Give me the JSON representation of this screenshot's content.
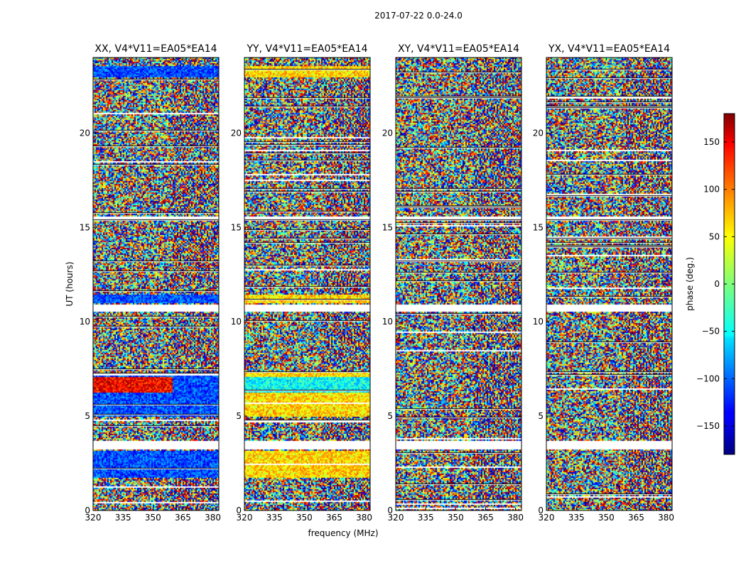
{
  "chart_data": {
    "type": "heatmap",
    "suptitle": "2017-07-22 0.0-24.0",
    "xlabel": "frequency (MHz)",
    "ylabel": "UT (hours)",
    "xlim": [
      320,
      383
    ],
    "ylim": [
      0,
      24
    ],
    "xticks": [
      320,
      335,
      350,
      365,
      380
    ],
    "yticks": [
      0,
      5,
      10,
      15,
      20
    ],
    "panels": [
      {
        "title": "XX, V4*V11=EA05*EA14",
        "correlation": "XX"
      },
      {
        "title": "YY, V4*V11=EA05*EA14",
        "correlation": "YY"
      },
      {
        "title": "XY, V4*V11=EA05*EA14",
        "correlation": "XY"
      },
      {
        "title": "YX, V4*V11=EA05*EA14",
        "correlation": "YX"
      }
    ],
    "colorbar": {
      "label": "phase (deg.)",
      "range": [
        -180,
        180
      ],
      "ticks": [
        -150,
        -100,
        -50,
        0,
        50,
        100,
        150
      ],
      "colormap": "jet"
    },
    "flagged_ut_ranges": [
      [
        3.3,
        3.7
      ],
      [
        10.55,
        10.95
      ],
      [
        15.45,
        15.6
      ]
    ]
  },
  "colors": {
    "background": "#ffffff",
    "axis": "#000000",
    "flagged": "#ffffff",
    "separator": "#000000"
  }
}
